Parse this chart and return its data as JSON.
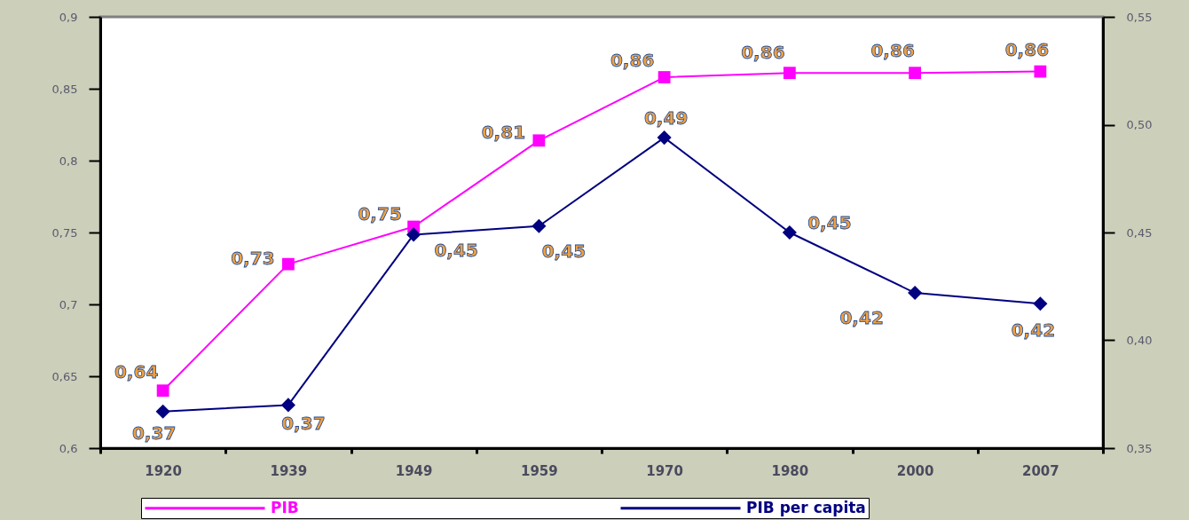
{
  "chart_data": {
    "type": "line",
    "categories": [
      "1920",
      "1939",
      "1949",
      "1959",
      "1970",
      "1980",
      "2000",
      "2007"
    ],
    "series": [
      {
        "name": "PIB",
        "color": "#ff00ff",
        "marker": "square",
        "values": [
          0.64,
          0.728,
          0.754,
          0.814,
          0.858,
          0.861,
          0.861,
          0.862
        ],
        "value_labels": [
          "0,64",
          "0,73",
          "0,75",
          "0,81",
          "0,86",
          "0,86",
          "0,86",
          "0,86"
        ]
      },
      {
        "name": "PIB per capita",
        "color": "#000080",
        "marker": "diamond",
        "axis": "y2",
        "values": [
          0.367,
          0.37,
          0.449,
          0.453,
          0.494,
          0.45,
          0.422,
          0.417
        ],
        "value_labels": [
          "0,37",
          "0,37",
          "0,45",
          "0,45",
          "0,49",
          "0,45",
          "0,42",
          "0,42"
        ]
      }
    ],
    "ylim": [
      0.6,
      0.9
    ],
    "yticks": [
      {
        "value": 0.6,
        "label": "0,6"
      },
      {
        "value": 0.65,
        "label": "0,65"
      },
      {
        "value": 0.7,
        "label": "0,7"
      },
      {
        "value": 0.75,
        "label": "0,75"
      },
      {
        "value": 0.8,
        "label": "0,8"
      },
      {
        "value": 0.85,
        "label": "0,85"
      },
      {
        "value": 0.9,
        "label": "0,9"
      }
    ],
    "y2lim": [
      0.35,
      0.55
    ],
    "y2ticks": [
      {
        "value": 0.35,
        "label": "0,35"
      },
      {
        "value": 0.4,
        "label": "0,40"
      },
      {
        "value": 0.45,
        "label": "0,45"
      },
      {
        "value": 0.5,
        "label": "0,50"
      },
      {
        "value": 0.55,
        "label": "0,55"
      }
    ],
    "legend": "bottom"
  }
}
